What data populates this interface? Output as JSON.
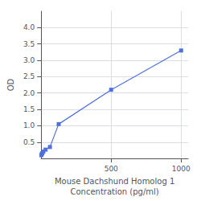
{
  "chart_data": {
    "type": "line",
    "x": [
      1,
      3.9,
      7.8,
      15.6,
      31.25,
      62.5,
      125,
      500,
      1000
    ],
    "values": [
      0.1,
      0.13,
      0.16,
      0.21,
      0.27,
      0.35,
      1.05,
      2.1,
      3.3
    ],
    "xlabel": "Mouse Dachshund Homolog 1\nConcentration (pg/ml)",
    "ylabel": "OD",
    "xlim": [
      0,
      1050
    ],
    "ylim": [
      0,
      4.5
    ],
    "xticks": [
      500,
      1000
    ],
    "yticks": [
      0.5,
      {
        "value": 1,
        "label": "1.0"
      },
      1.5,
      {
        "value": 2,
        "label": "2.0"
      },
      2.5,
      {
        "value": 3,
        "label": "3.0"
      },
      3.5,
      {
        "value": 4,
        "label": "4.0"
      }
    ],
    "marker": "square",
    "grid": true
  }
}
